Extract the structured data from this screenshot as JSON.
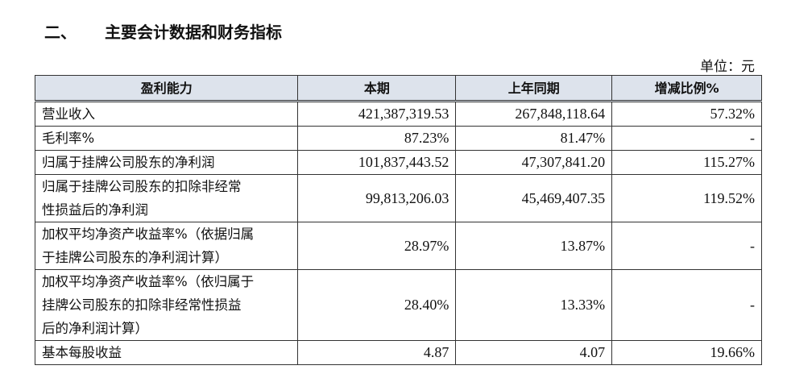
{
  "title": {
    "number": "二、",
    "text": "主要会计数据和财务指标"
  },
  "unit": "单位：元",
  "table": {
    "header": [
      "盈利能力",
      "本期",
      "上年同期",
      "增减比例%"
    ],
    "rows": [
      [
        [
          "营业收入"
        ],
        "421,387,319.53",
        "267,848,118.64",
        "57.32%"
      ],
      [
        [
          "毛利率%"
        ],
        "87.23%",
        "81.47%",
        "-"
      ],
      [
        [
          "归属于挂牌公司股东的净利润"
        ],
        "101,837,443.52",
        "47,307,841.20",
        "115.27%"
      ],
      [
        [
          "归属于挂牌公司股东的扣除非经常",
          "性损益后的净利润"
        ],
        "99,813,206.03",
        "45,469,407.35",
        "119.52%"
      ],
      [
        [
          "加权平均净资产收益率%（依据归属",
          "于挂牌公司股东的净利润计算）"
        ],
        "28.97%",
        "13.87%",
        "-"
      ],
      [
        [
          "加权平均净资产收益率%（依归属于",
          "挂牌公司股东的扣除非经常性损益",
          "后的净利润计算）"
        ],
        "28.40%",
        "13.33%",
        "-"
      ],
      [
        [
          "基本每股收益"
        ],
        "4.87",
        "4.07",
        "19.66%"
      ]
    ]
  }
}
